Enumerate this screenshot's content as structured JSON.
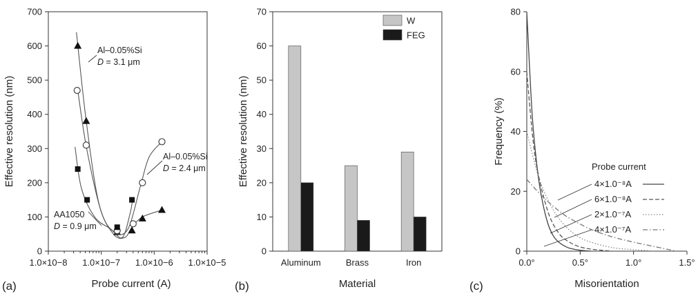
{
  "chart_data": [
    {
      "type": "scatter",
      "panel_label": "(a)",
      "xlabel": "Probe current (A)",
      "ylabel": "Effective resolution (nm)",
      "xscale": "log",
      "xlim": [
        1e-08,
        1e-05
      ],
      "ylim": [
        0,
        700
      ],
      "x_ticks": [
        "1.0×10−8",
        "1.0×10−7",
        "1.0×10−6",
        "1.0×10−5"
      ],
      "y_ticks": [
        "0",
        "100",
        "200",
        "300",
        "400",
        "500",
        "600",
        "700"
      ],
      "grid": false,
      "legend": "none",
      "series": [
        {
          "marker": "triangle",
          "annotation_line1": "Al–0.05%Si",
          "annotation_line2": "D = 3.1 μm",
          "x": [
            3.6e-08,
            5.2e-08,
            2e-07,
            3.8e-07,
            6e-07,
            1.4e-06
          ],
          "y": [
            600,
            380,
            55,
            60,
            95,
            120
          ]
        },
        {
          "marker": "circle",
          "annotation_line1": "Al–0.05%Si",
          "annotation_line2": "D = 2.4 μm",
          "x": [
            3.5e-08,
            5.2e-08,
            2e-07,
            4e-07,
            6e-07,
            1.4e-06
          ],
          "y": [
            470,
            310,
            60,
            80,
            200,
            320
          ]
        },
        {
          "marker": "square",
          "annotation_line1": "AA1050",
          "annotation_line2": "D = 0.9 μm",
          "x": [
            3.6e-08,
            5.4e-08,
            2e-07,
            3.8e-07
          ],
          "y": [
            240,
            150,
            70,
            150
          ]
        }
      ]
    },
    {
      "type": "bar",
      "panel_label": "(b)",
      "xlabel": "Material",
      "ylabel": "Effective resolution (nm)",
      "categories": [
        "Aluminum",
        "Brass",
        "Iron"
      ],
      "ylim": [
        0,
        70
      ],
      "y_ticks": [
        "0",
        "10",
        "20",
        "30",
        "40",
        "50",
        "60",
        "70"
      ],
      "grid": false,
      "legend": "top-right",
      "series": [
        {
          "name": "W",
          "color": "#c6c6c6",
          "values": [
            60,
            25,
            29
          ]
        },
        {
          "name": "FEG",
          "color": "#1a1a1a",
          "values": [
            20,
            9,
            10
          ]
        }
      ]
    },
    {
      "type": "line",
      "panel_label": "(c)",
      "xlabel": "Misorientation",
      "ylabel": "Frequency (%)",
      "xlim": [
        0,
        1.5
      ],
      "ylim": [
        0,
        80
      ],
      "x_ticks": [
        "0.0°",
        "0.5°",
        "1.0°",
        "1.5°"
      ],
      "y_ticks": [
        "0",
        "20",
        "40",
        "60",
        "80"
      ],
      "grid": false,
      "legend": "right",
      "legend_title": "Probe current",
      "series": [
        {
          "name": "4×1.0⁻⁸A",
          "style": "solid",
          "x": [
            0.0,
            0.05,
            0.1,
            0.15,
            0.2,
            0.25,
            0.3,
            0.35,
            0.4,
            0.5,
            0.6
          ],
          "y": [
            80,
            46,
            27,
            16,
            9,
            5,
            3,
            1.8,
            1,
            0.3,
            0
          ]
        },
        {
          "name": "6×1.0⁻⁸A",
          "style": "dashed",
          "x": [
            0.0,
            0.05,
            0.1,
            0.2,
            0.3,
            0.4,
            0.5,
            0.6,
            0.7,
            0.8
          ],
          "y": [
            60,
            40,
            27,
            13,
            6,
            3,
            1.4,
            0.7,
            0.3,
            0
          ]
        },
        {
          "name": "2×1.0⁻⁷A",
          "style": "dotted",
          "x": [
            0.0,
            0.1,
            0.2,
            0.3,
            0.4,
            0.5,
            0.6,
            0.8,
            1.0,
            1.2
          ],
          "y": [
            40,
            26,
            17,
            11,
            7,
            4.5,
            3,
            1.2,
            0.5,
            0
          ]
        },
        {
          "name": "4×1.0⁻⁷A",
          "style": "dashdot",
          "x": [
            0.0,
            0.1,
            0.2,
            0.3,
            0.4,
            0.6,
            0.8,
            1.0,
            1.2,
            1.4
          ],
          "y": [
            24,
            20,
            16.5,
            13.5,
            11,
            7.3,
            4.8,
            3.0,
            1.5,
            0
          ]
        }
      ]
    }
  ]
}
